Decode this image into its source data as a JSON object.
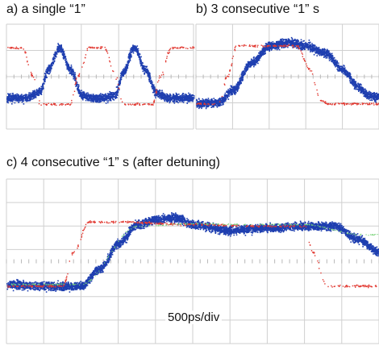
{
  "panels": {
    "a": {
      "label": "a) a single “1”"
    },
    "b": {
      "label": "b) 3 consecutive “1” s"
    },
    "c": {
      "label": "c) 4 consecutive “1” s (after detuning)"
    }
  },
  "scale_label": "500ps/div",
  "colors": {
    "measured": "#1f3fb0",
    "reference": "#e23a32",
    "fit": "#7ad37a",
    "grid": "#cfcfcf"
  },
  "chart_data": [
    {
      "type": "scatter",
      "title": "a) a single “1”",
      "time_per_div_ps": 500,
      "grid": true,
      "series": [
        {
          "name": "",
          "x": [
            0.0,
            0.1,
            0.18,
            0.22,
            0.28,
            0.34,
            0.4,
            0.46,
            0.52,
            0.58,
            0.62,
            0.68,
            0.74,
            0.8,
            0.86,
            0.92,
            1.0
          ],
          "y": [
            0.2,
            0.2,
            0.3,
            0.65,
            1.0,
            0.65,
            0.25,
            0.2,
            0.2,
            0.25,
            0.6,
            1.0,
            0.65,
            0.28,
            0.2,
            0.2,
            0.2
          ]
        },
        {
          "name": "",
          "x": [
            0.0,
            0.08,
            0.14,
            0.18,
            0.34,
            0.38,
            0.44,
            0.52,
            0.58,
            0.62,
            0.78,
            0.82,
            0.88,
            1.0
          ],
          "y": [
            1.0,
            1.0,
            0.55,
            0.1,
            0.1,
            0.55,
            1.0,
            1.0,
            0.55,
            0.1,
            0.1,
            0.55,
            1.0,
            1.0
          ]
        }
      ]
    },
    {
      "type": "scatter",
      "title": "b) 3 consecutive “1” s",
      "grid": true,
      "series": [
        {
          "name": "",
          "x": [
            0.0,
            0.12,
            0.2,
            0.3,
            0.4,
            0.5,
            0.6,
            0.7,
            0.8,
            0.88,
            0.94,
            1.0
          ],
          "y": [
            0.1,
            0.12,
            0.3,
            0.7,
            0.95,
            1.0,
            0.95,
            0.85,
            0.6,
            0.35,
            0.22,
            0.2
          ]
        },
        {
          "name": "",
          "x": [
            0.0,
            0.12,
            0.17,
            0.22,
            0.55,
            0.62,
            0.68,
            0.72,
            1.0
          ],
          "y": [
            0.1,
            0.1,
            0.5,
            0.95,
            0.95,
            0.6,
            0.15,
            0.1,
            0.1
          ]
        }
      ]
    },
    {
      "type": "scatter",
      "title": "c) 4 consecutive “1” s (after detuning)",
      "grid": true,
      "series": [
        {
          "name": "",
          "x": [
            0.0,
            0.1,
            0.2,
            0.25,
            0.3,
            0.35,
            0.4,
            0.45,
            0.5,
            0.6,
            0.7,
            0.8,
            0.88,
            0.94,
            1.0
          ],
          "y": [
            0.12,
            0.1,
            0.1,
            0.3,
            0.6,
            0.82,
            0.88,
            0.9,
            0.82,
            0.75,
            0.78,
            0.8,
            0.8,
            0.65,
            0.5
          ]
        },
        {
          "name": "",
          "x": [
            0.0,
            0.15,
            0.18,
            0.22,
            0.3,
            0.5,
            0.7,
            0.8,
            0.82,
            0.86,
            1.0
          ],
          "y": [
            0.1,
            0.1,
            0.5,
            0.85,
            0.85,
            0.82,
            0.8,
            0.8,
            0.5,
            0.1,
            0.1
          ]
        },
        {
          "name": "",
          "x": [
            0.0,
            0.1,
            0.2,
            0.35,
            0.5,
            0.65,
            0.8,
            0.95
          ],
          "y": [
            0.12,
            0.12,
            0.12,
            0.8,
            0.83,
            0.82,
            0.82,
            0.7
          ]
        }
      ]
    }
  ]
}
